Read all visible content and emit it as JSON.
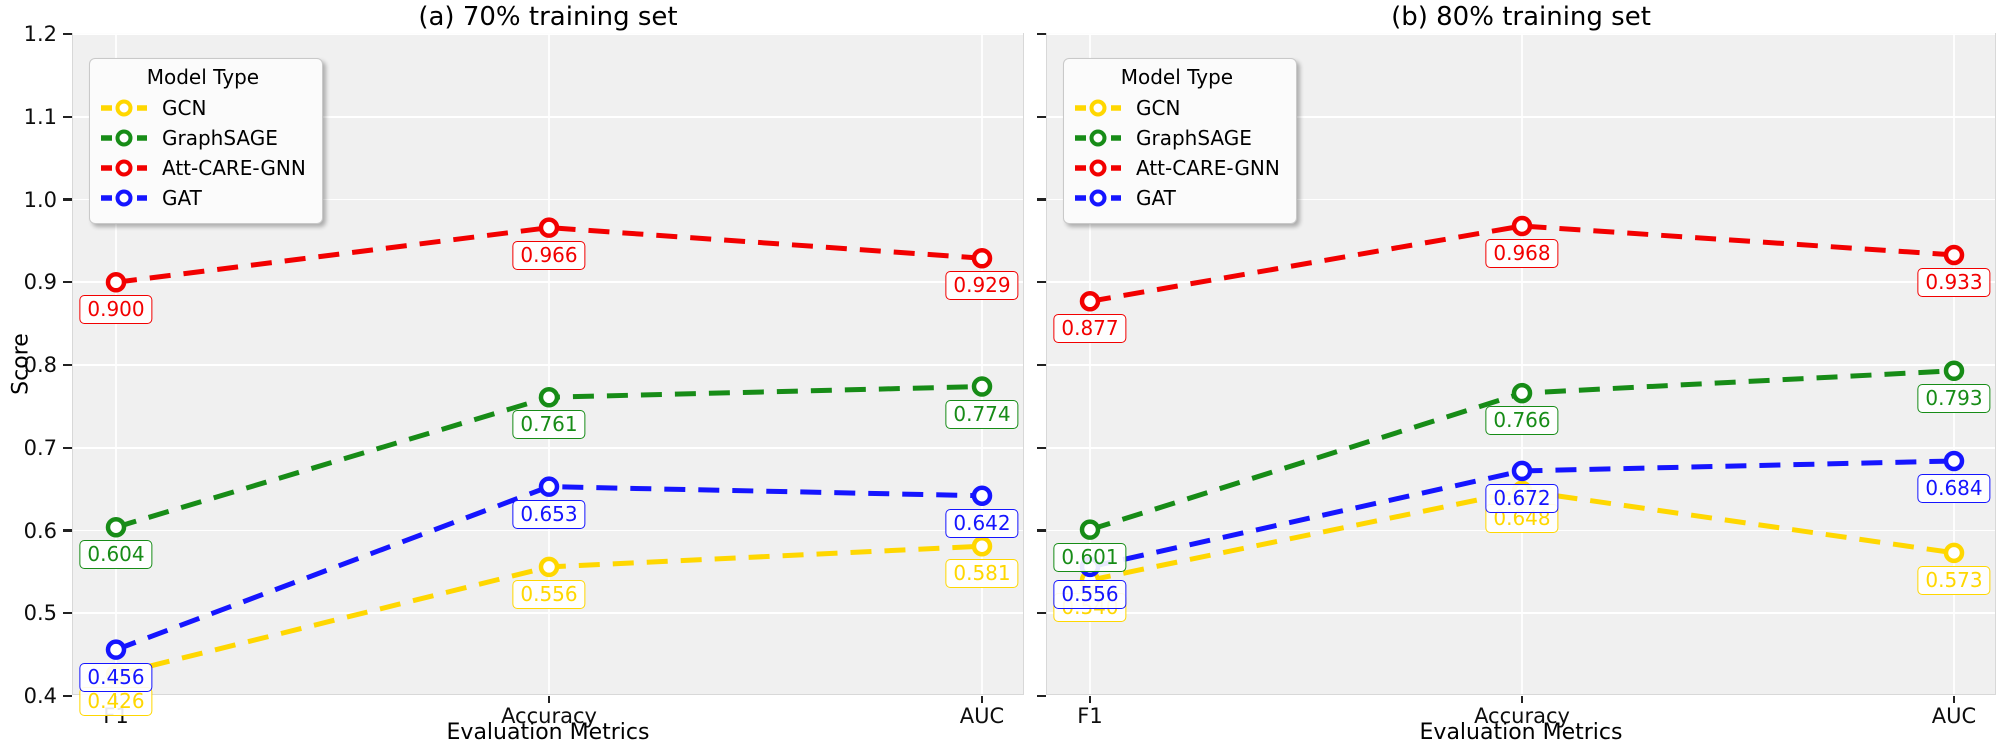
{
  "figure_labels": {
    "shared_ylabel": "Score",
    "shared_xlabel": "Evaluation Metrics",
    "legend_title": "Model Type"
  },
  "chart_data": [
    {
      "type": "line",
      "title": "(a) 70% training set",
      "xlabel": "Evaluation Metrics",
      "ylabel": "Score",
      "categories": [
        "F1",
        "Accuracy",
        "AUC"
      ],
      "ylim": [
        0.4,
        1.2
      ],
      "yticks": [
        0.4,
        0.5,
        0.6,
        0.7,
        0.8,
        0.9,
        1.0,
        1.1,
        1.2
      ],
      "ytick_labels_visible": true,
      "grid": true,
      "line_style": "dashed",
      "marker": "open-circle",
      "data_labels_decimals": 3,
      "legend_title": "Model Type",
      "legend_position": "upper-left",
      "series": [
        {
          "name": "GCN",
          "color": "#FFD700",
          "values": [
            0.426,
            0.556,
            0.581
          ]
        },
        {
          "name": "GraphSAGE",
          "color": "#178c17",
          "values": [
            0.604,
            0.761,
            0.774
          ]
        },
        {
          "name": "Att-CARE-GNN",
          "color": "#f20000",
          "values": [
            0.9,
            0.966,
            0.929
          ]
        },
        {
          "name": "GAT",
          "color": "#1515ff",
          "values": [
            0.456,
            0.653,
            0.642
          ]
        }
      ]
    },
    {
      "type": "line",
      "title": "(b) 80% training set",
      "xlabel": "Evaluation Metrics",
      "ylabel": "",
      "categories": [
        "F1",
        "Accuracy",
        "AUC"
      ],
      "ylim": [
        0.4,
        1.2
      ],
      "yticks": [
        0.4,
        0.5,
        0.6,
        0.7,
        0.8,
        0.9,
        1.0,
        1.1,
        1.2
      ],
      "ytick_labels_visible": false,
      "grid": true,
      "line_style": "dashed",
      "marker": "open-circle",
      "data_labels_decimals": 3,
      "legend_title": "Model Type",
      "legend_position": "upper-left",
      "series": [
        {
          "name": "GCN",
          "color": "#FFD700",
          "values": [
            0.54,
            0.648,
            0.573
          ]
        },
        {
          "name": "GraphSAGE",
          "color": "#178c17",
          "values": [
            0.601,
            0.766,
            0.793
          ]
        },
        {
          "name": "Att-CARE-GNN",
          "color": "#f20000",
          "values": [
            0.877,
            0.968,
            0.933
          ]
        },
        {
          "name": "GAT",
          "color": "#1515ff",
          "values": [
            0.556,
            0.672,
            0.684
          ]
        }
      ]
    }
  ]
}
